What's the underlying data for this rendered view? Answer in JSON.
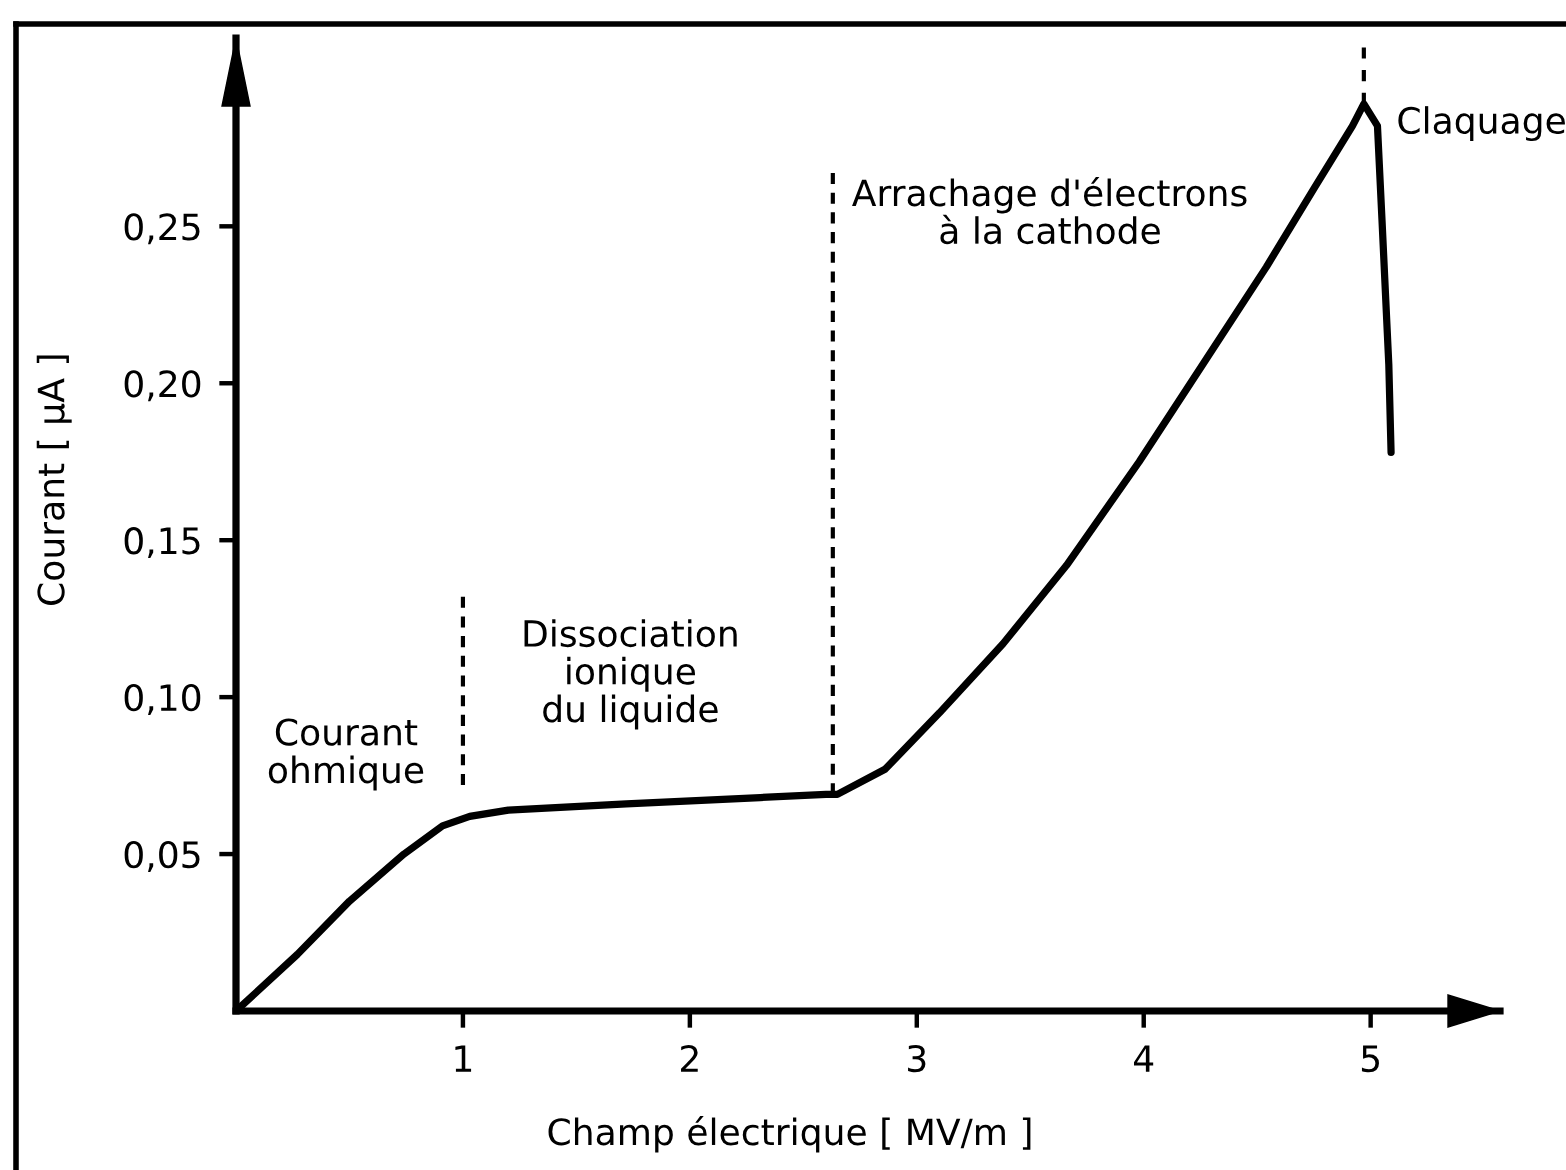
{
  "chart_data": {
    "type": "line",
    "xlabel": "Champ électrique [ MV/m ]",
    "ylabel": "Courant [ μA ]",
    "xlim": [
      0,
      5.57
    ],
    "ylim": [
      0,
      0.31
    ],
    "xticks": [
      1,
      2,
      3,
      4,
      5
    ],
    "yticks": [
      {
        "value": 0.05,
        "label": "0,05"
      },
      {
        "value": 0.1,
        "label": "0,10"
      },
      {
        "value": 0.15,
        "label": "0,15"
      },
      {
        "value": 0.2,
        "label": "0,20"
      },
      {
        "value": 0.25,
        "label": "0,25"
      }
    ],
    "series": [
      {
        "color": "#000000",
        "line_style": "solid",
        "x": [
          0,
          0.27,
          0.5,
          0.74,
          0.91,
          1.03,
          1.2,
          1.72,
          2.31,
          2.6,
          2.65,
          2.86,
          3.1,
          3.38,
          3.66,
          3.98,
          4.26,
          4.54,
          4.75,
          4.92,
          4.97,
          5.03,
          5.05,
          5.08,
          5.09
        ],
        "values": [
          0,
          0.018,
          0.035,
          0.05,
          0.059,
          0.062,
          0.064,
          0.066,
          0.068,
          0.069,
          0.069,
          0.077,
          0.095,
          0.117,
          0.142,
          0.175,
          0.206,
          0.237,
          0.262,
          0.282,
          0.289,
          0.282,
          0.252,
          0.206,
          0.178
        ]
      },
      {
        "color": "#000000",
        "line_style": "dashed",
        "x": [
          1,
          1
        ],
        "values": [
          0.072,
          0.132
        ]
      },
      {
        "color": "#000000",
        "line_style": "dashed",
        "x": [
          2.63,
          2.63
        ],
        "values": [
          0.069,
          0.267
        ]
      },
      {
        "color": "#000000",
        "line_style": "dashed",
        "x": [
          4.97,
          4.97
        ],
        "values": [
          0.289,
          0.307
        ]
      }
    ],
    "annotations": [
      "Courant\nohmique",
      "Dissociation\nionique\ndu liquide",
      "Arrachage d'électrons\nà la cathode",
      "Claquage"
    ]
  }
}
